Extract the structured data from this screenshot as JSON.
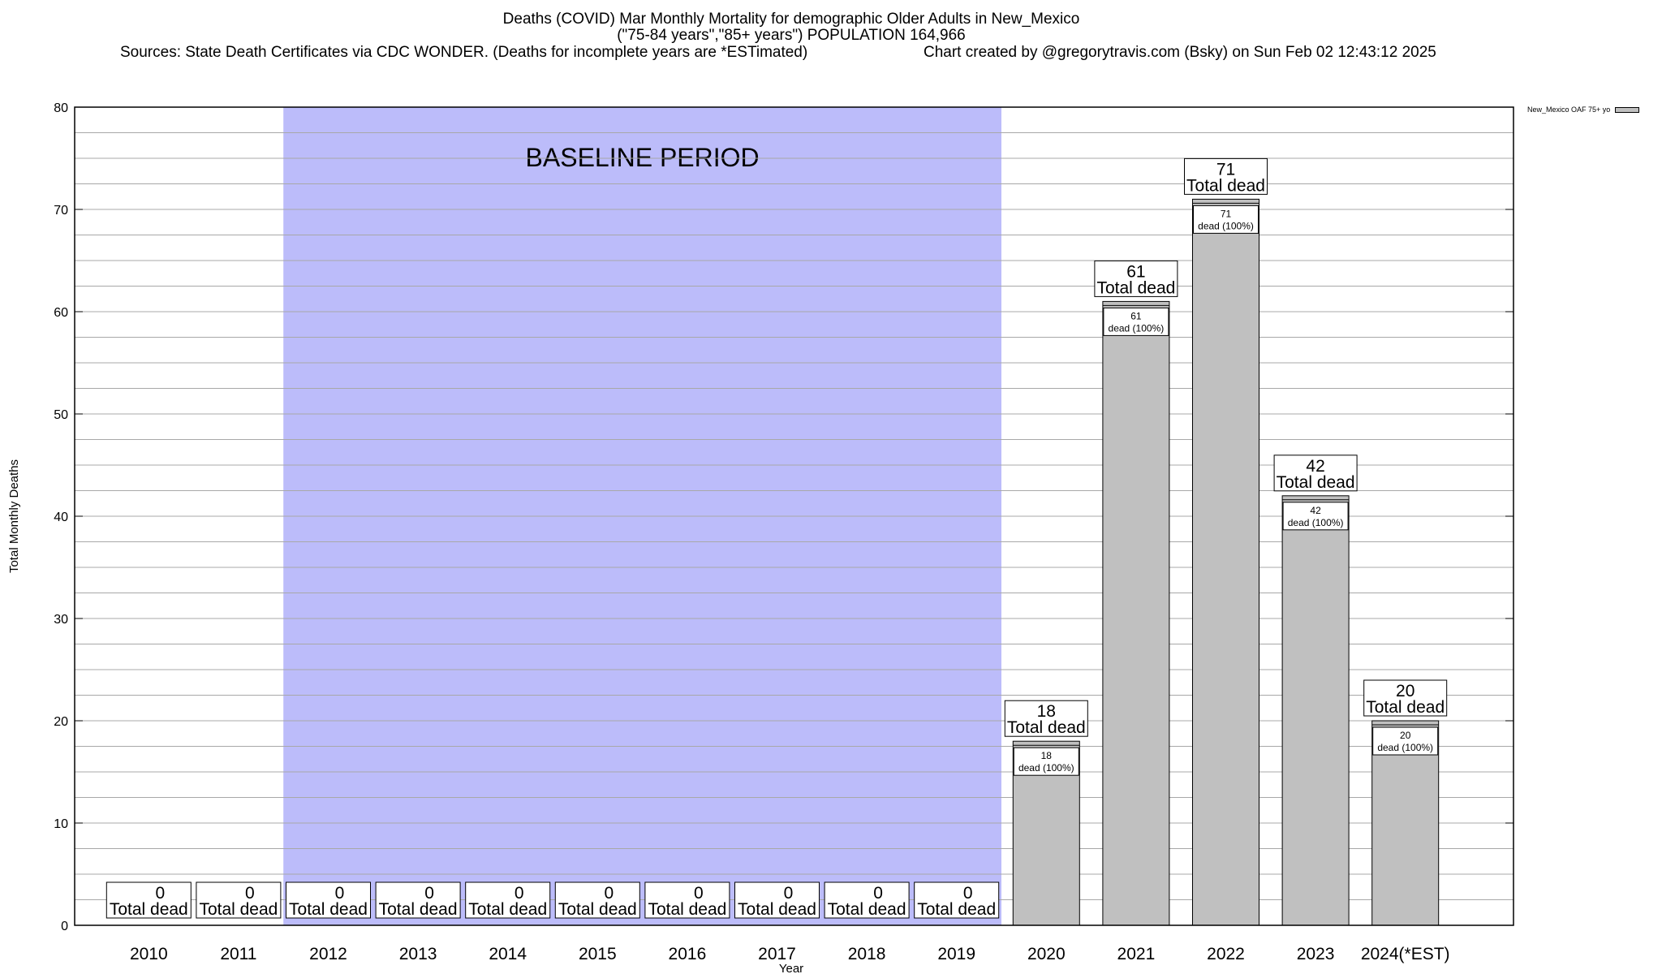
{
  "header": {
    "title": "Deaths (COVID) Mar Monthly Mortality for demographic Older Adults in New_Mexico",
    "subtitle": "(\"75-84 years\",\"85+ years\") POPULATION 164,966",
    "sources": "Sources: State Death Certificates via CDC WONDER. (Deaths for incomplete years are *ESTimated)",
    "credit": "Chart created by @gregorytravis.com (Bsky) on Sun Feb 02 12:43:12 2025"
  },
  "legend": {
    "label": "New_Mexico OAF 75+ yo"
  },
  "chart_data": {
    "type": "bar",
    "xlabel": "Year",
    "ylabel": "Total Monthly Deaths",
    "ylim": [
      0,
      80
    ],
    "yticks": [
      0,
      10,
      20,
      30,
      40,
      50,
      60,
      70,
      80
    ],
    "grid": true,
    "legend_position": "top-right",
    "baseline_label": "BASELINE PERIOD",
    "baseline_range": [
      "2012",
      "2019"
    ],
    "categories": [
      "2010",
      "2011",
      "2012",
      "2013",
      "2014",
      "2015",
      "2016",
      "2017",
      "2018",
      "2019",
      "2020",
      "2021",
      "2022",
      "2023",
      "2024(*EST)"
    ],
    "series": [
      {
        "name": "New_Mexico OAF 75+ yo",
        "values": [
          0,
          0,
          0,
          0,
          0,
          0,
          0,
          0,
          0,
          0,
          18,
          61,
          71,
          42,
          20
        ]
      }
    ],
    "total_label": "Total dead",
    "segment_label": "dead (100%)",
    "colors": {
      "bar": "#c0c0c0",
      "baseline": "#bcbcfa",
      "grid": "#a8a8a8"
    }
  }
}
